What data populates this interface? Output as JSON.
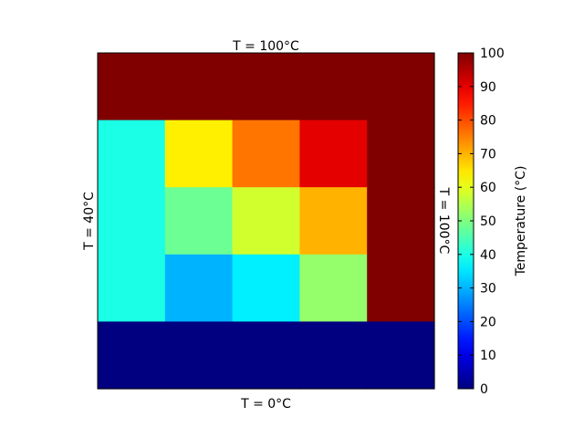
{
  "chart_data": {
    "type": "heatmap",
    "title": "",
    "grid": false,
    "rows": 5,
    "cols": 5,
    "values": [
      [
        100,
        100,
        100,
        100,
        100
      ],
      [
        40,
        64,
        76,
        90,
        100
      ],
      [
        40,
        48,
        58,
        70,
        100
      ],
      [
        40,
        30,
        36,
        52,
        100
      ],
      [
        0,
        0,
        0,
        0,
        0
      ]
    ],
    "boundary_labels": {
      "top": "T = 100°C",
      "left": "T = 40°C",
      "right": "T = 100°C",
      "bottom": "T = 0°C"
    },
    "colormap": "jet",
    "colorbar": {
      "label": "Temperature (°C)",
      "range": [
        0,
        100
      ],
      "ticks": [
        0,
        10,
        20,
        30,
        40,
        50,
        60,
        70,
        80,
        90,
        100
      ]
    }
  }
}
